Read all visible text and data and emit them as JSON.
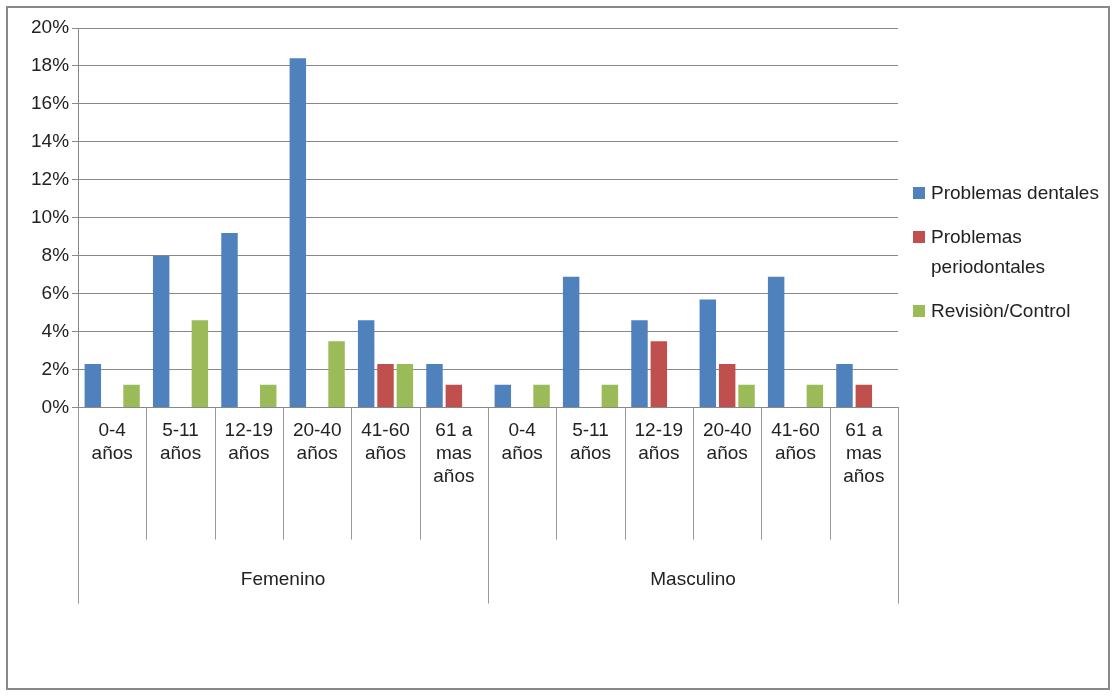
{
  "chart_data": {
    "type": "bar",
    "categories": [
      "0-4 años",
      "5-11 años",
      "12-19 años",
      "20-40 años",
      "41-60 años",
      "61 a mas años",
      "0-4 años",
      "5-11 años",
      "12-19 años",
      "20-40 años",
      "41-60 años",
      "61 a mas años"
    ],
    "annotations": [
      "Femenino",
      "Masculino"
    ],
    "series": [
      {
        "name": "Problemas dentales",
        "color": "#4f81bd",
        "values": [
          2.3,
          8.0,
          9.2,
          18.4,
          4.6,
          2.3,
          1.2,
          6.9,
          4.6,
          5.7,
          6.9,
          2.3
        ]
      },
      {
        "name": "Problemas periodontales",
        "color": "#c0504d",
        "values": [
          null,
          null,
          null,
          null,
          2.3,
          1.2,
          null,
          null,
          3.5,
          2.3,
          null,
          1.2
        ]
      },
      {
        "name": "Revisiòn/Control",
        "color": "#9bbb59",
        "values": [
          1.2,
          4.6,
          1.2,
          3.5,
          2.3,
          null,
          1.2,
          1.2,
          null,
          1.2,
          1.2,
          null
        ]
      }
    ],
    "ylim": [
      0,
      20
    ],
    "yticks": [
      {
        "value": 0,
        "label": "0%"
      },
      {
        "value": 2,
        "label": "2%"
      },
      {
        "value": 4,
        "label": "4%"
      },
      {
        "value": 6,
        "label": "6%"
      },
      {
        "value": 8,
        "label": "8%"
      },
      {
        "value": 10,
        "label": "10%"
      },
      {
        "value": 12,
        "label": "12%"
      },
      {
        "value": 14,
        "label": "14%"
      },
      {
        "value": 16,
        "label": "16%"
      },
      {
        "value": 18,
        "label": "18%"
      },
      {
        "value": 20,
        "label": "20%"
      }
    ],
    "grid": "y",
    "legend": "right"
  }
}
